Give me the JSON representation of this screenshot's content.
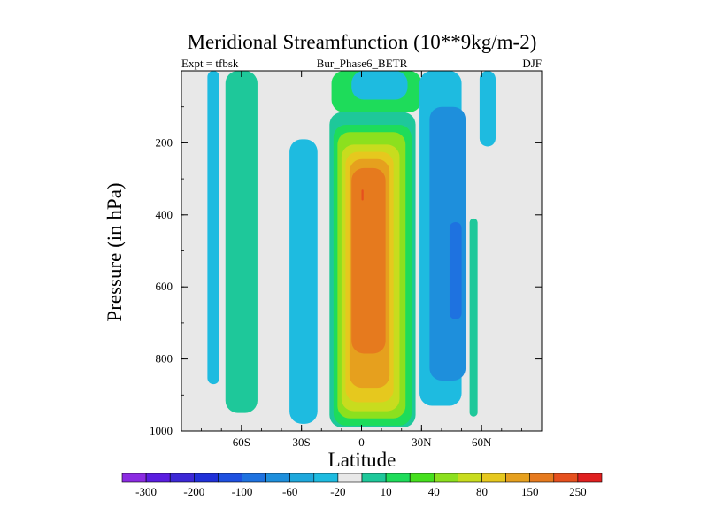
{
  "chart_data": {
    "type": "contour",
    "title": "Meridional Streamfunction (10**9kg/m-2)",
    "left_string": "Expt = tfbsk",
    "center_string": "Bur_Phase6_BETR",
    "right_string": "DJF",
    "xlabel": "Latitude",
    "ylabel": "Pressure (in hPa)",
    "xlim": [
      -90,
      90
    ],
    "ylim": [
      1000,
      0
    ],
    "x_ticks": [
      {
        "value": -60,
        "label": "60S"
      },
      {
        "value": -30,
        "label": "30S"
      },
      {
        "value": 0,
        "label": "0"
      },
      {
        "value": 30,
        "label": "30N"
      },
      {
        "value": 60,
        "label": "60N"
      }
    ],
    "y_ticks": [
      {
        "value": 200,
        "label": "200"
      },
      {
        "value": 400,
        "label": "400"
      },
      {
        "value": 600,
        "label": "600"
      },
      {
        "value": 800,
        "label": "800"
      },
      {
        "value": 1000,
        "label": "1000"
      }
    ],
    "colorbar": {
      "colors": [
        "#8b2be2",
        "#5a1de0",
        "#3c28d6",
        "#2030d8",
        "#1e50e0",
        "#1e72e0",
        "#1e8fdc",
        "#1ea8dc",
        "#1ebbe0",
        "#e8e8e8",
        "#1ec89a",
        "#1edc5a",
        "#46e01e",
        "#8ce01e",
        "#c8dc1e",
        "#e6c81e",
        "#e6a01e",
        "#e67a1e",
        "#e6501e",
        "#e02020"
      ],
      "tick_labels": [
        {
          "index": 1,
          "label": "-300"
        },
        {
          "index": 3,
          "label": "-200"
        },
        {
          "index": 5,
          "label": "-100"
        },
        {
          "index": 7,
          "label": "-60"
        },
        {
          "index": 9,
          "label": "-20"
        },
        {
          "index": 11,
          "label": "10"
        },
        {
          "index": 13,
          "label": "40"
        },
        {
          "index": 15,
          "label": "80"
        },
        {
          "index": 17,
          "label": "150"
        },
        {
          "index": 19,
          "label": "250"
        }
      ]
    },
    "regions": [
      {
        "name": "central-cell-outer",
        "level": 10,
        "color": "#1ec89a",
        "lat": [
          -16,
          27
        ],
        "p_top": 115,
        "p_bottom": 990
      },
      {
        "name": "central-cell-l40",
        "level": 40,
        "color": "#1edc5a",
        "lat": [
          -14,
          25
        ],
        "p_top": 150,
        "p_bottom": 985
      },
      {
        "name": "central-cell-l60",
        "level": 60,
        "color": "#8ce01e",
        "lat": [
          -12,
          22
        ],
        "p_top": 170,
        "p_bottom": 965
      },
      {
        "name": "central-cell-l80",
        "level": 80,
        "color": "#c8dc1e",
        "lat": [
          -10,
          19
        ],
        "p_top": 205,
        "p_bottom": 945
      },
      {
        "name": "central-cell-l100",
        "level": 100,
        "color": "#e6c81e",
        "lat": [
          -8,
          16
        ],
        "p_top": 225,
        "p_bottom": 920
      },
      {
        "name": "central-cell-l150",
        "level": 150,
        "color": "#e6a01e",
        "lat": [
          -6,
          14
        ],
        "p_top": 245,
        "p_bottom": 880
      },
      {
        "name": "central-cell-l200",
        "level": 200,
        "color": "#e67a1e",
        "lat": [
          -5,
          12
        ],
        "p_top": 270,
        "p_bottom": 785
      },
      {
        "name": "central-cell-peak",
        "level": 250,
        "color": "#e6501e",
        "lat": [
          0,
          1
        ],
        "p_top": 330,
        "p_bottom": 360
      },
      {
        "name": "top-green-band",
        "level": 10,
        "color": "#1edc5a",
        "lat": [
          -15,
          30
        ],
        "p_top": 0,
        "p_bottom": 115
      },
      {
        "name": "top-cyan-band",
        "level": -10,
        "color": "#1ebbe0",
        "lat": [
          -5,
          23
        ],
        "p_top": 0,
        "p_bottom": 80
      },
      {
        "name": "south-green-column",
        "level": 10,
        "color": "#1edc5a",
        "lat": [
          -66,
          -56
        ],
        "p_top": 0,
        "p_bottom": 880
      },
      {
        "name": "south-teal-column",
        "level": 10,
        "color": "#1ec89a",
        "lat": [
          -68,
          -52
        ],
        "p_top": 0,
        "p_bottom": 950
      },
      {
        "name": "south-cyan-column",
        "level": -20,
        "color": "#1ebbe0",
        "lat": [
          -77,
          -71
        ],
        "p_top": 0,
        "p_bottom": 870
      },
      {
        "name": "midlat-south-cyan",
        "level": -20,
        "color": "#1ebbe0",
        "lat": [
          -36,
          -22
        ],
        "p_top": 190,
        "p_bottom": 980
      },
      {
        "name": "north-cyan-cell",
        "level": -20,
        "color": "#1ebbe0",
        "lat": [
          29,
          50
        ],
        "p_top": 0,
        "p_bottom": 930
      },
      {
        "name": "north-blue-cell",
        "level": -60,
        "color": "#1e8fdc",
        "lat": [
          34,
          52
        ],
        "p_top": 100,
        "p_bottom": 860
      },
      {
        "name": "north-core-blue",
        "level": -100,
        "color": "#1e72e0",
        "lat": [
          44,
          50
        ],
        "p_top": 420,
        "p_bottom": 690
      },
      {
        "name": "north-green-column",
        "level": 10,
        "color": "#1ec89a",
        "lat": [
          54,
          58
        ],
        "p_top": 410,
        "p_bottom": 960
      },
      {
        "name": "polar-cyan",
        "level": -20,
        "color": "#1ebbe0",
        "lat": [
          59,
          67
        ],
        "p_top": 0,
        "p_bottom": 210
      }
    ]
  }
}
